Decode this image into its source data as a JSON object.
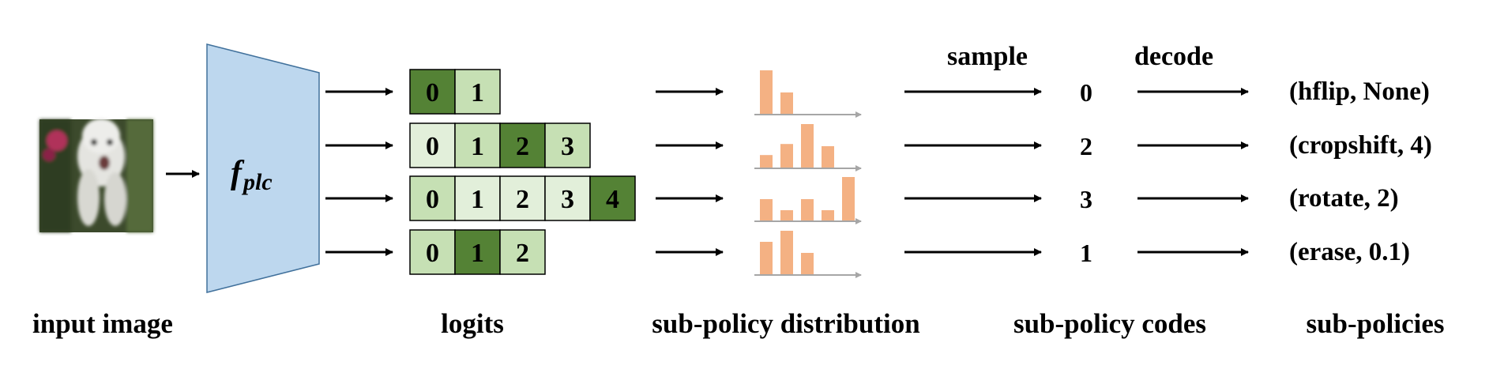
{
  "stage_labels": {
    "input": "input image",
    "logits": "logits",
    "distribution": "sub-policy distribution",
    "codes": "sub-policy codes",
    "policies": "sub-policies"
  },
  "arrow_labels": {
    "sample": "sample",
    "decode": "decode"
  },
  "network": {
    "symbol": "f",
    "subscript": "plc",
    "fill": "#bdd7ee"
  },
  "colors": {
    "light": "#e2efda",
    "medium": "#c6e0b4",
    "dark": "#548235",
    "bar": "#f4b183",
    "axis": "#a6a6a6"
  },
  "rows": [
    {
      "cells": [
        {
          "v": "0",
          "shade": "dark"
        },
        {
          "v": "1",
          "shade": "medium"
        }
      ],
      "bars": [
        1.0,
        0.5
      ],
      "code": "0",
      "policy": "(hflip, None)"
    },
    {
      "cells": [
        {
          "v": "0",
          "shade": "light"
        },
        {
          "v": "1",
          "shade": "medium"
        },
        {
          "v": "2",
          "shade": "dark"
        },
        {
          "v": "3",
          "shade": "medium"
        }
      ],
      "bars": [
        0.3,
        0.55,
        1.0,
        0.5
      ],
      "code": "2",
      "policy": "(cropshift, 4)"
    },
    {
      "cells": [
        {
          "v": "0",
          "shade": "medium"
        },
        {
          "v": "1",
          "shade": "light"
        },
        {
          "v": "2",
          "shade": "light"
        },
        {
          "v": "3",
          "shade": "light"
        },
        {
          "v": "4",
          "shade": "dark"
        }
      ],
      "bars": [
        0.5,
        0.25,
        0.5,
        0.25,
        1.0
      ],
      "code": "3",
      "policy": "(rotate, 2)"
    },
    {
      "cells": [
        {
          "v": "0",
          "shade": "medium"
        },
        {
          "v": "1",
          "shade": "dark"
        },
        {
          "v": "2",
          "shade": "medium"
        }
      ],
      "bars": [
        0.75,
        1.0,
        0.5
      ],
      "code": "1",
      "policy": "(erase, 0.1)"
    }
  ]
}
